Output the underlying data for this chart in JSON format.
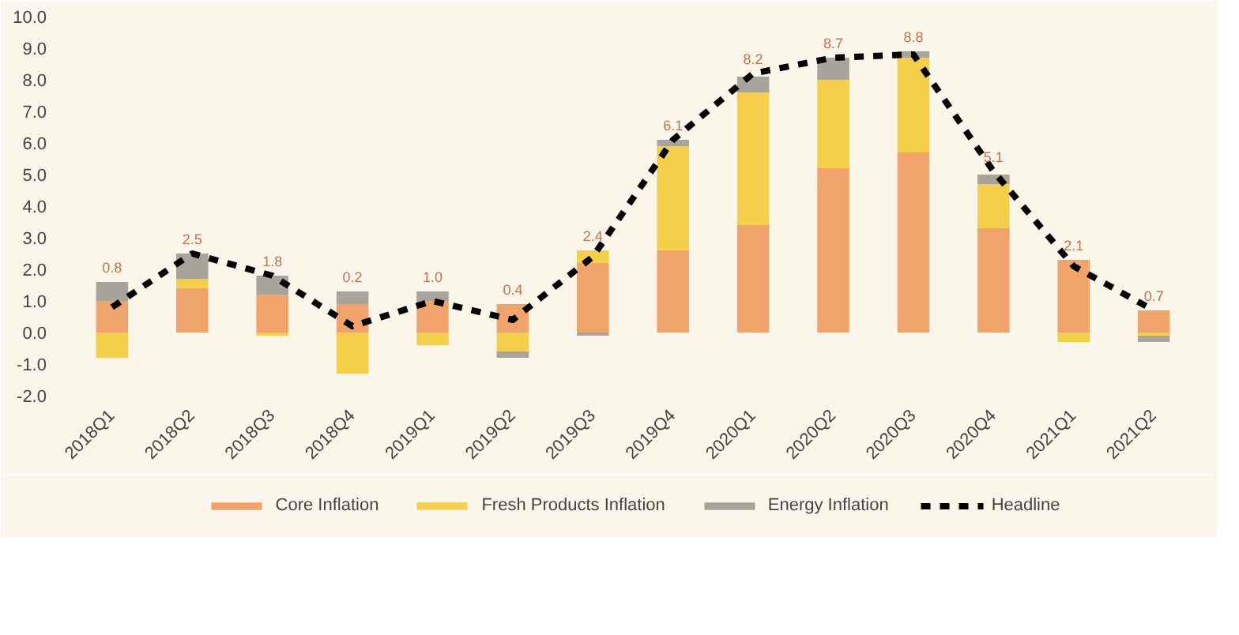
{
  "chart_data": {
    "type": "bar",
    "stacked": true,
    "categories": [
      "2018Q1",
      "2018Q2",
      "2018Q3",
      "2018Q4",
      "2019Q1",
      "2019Q2",
      "2019Q3",
      "2019Q4",
      "2020Q1",
      "2020Q2",
      "2020Q3",
      "2020Q4",
      "2021Q1",
      "2021Q2"
    ],
    "series": [
      {
        "name": "Core Inflation",
        "color": "#f0a46c",
        "values": [
          1.0,
          1.4,
          1.2,
          0.9,
          1.0,
          0.9,
          2.2,
          2.6,
          3.4,
          5.2,
          5.7,
          3.3,
          2.3,
          0.7
        ]
      },
      {
        "name": "Fresh Products Inflation",
        "color": "#f5cf4a",
        "values": [
          -0.8,
          0.3,
          -0.1,
          -1.3,
          -0.4,
          -0.6,
          0.4,
          3.3,
          4.2,
          2.8,
          3.0,
          1.4,
          -0.3,
          -0.1
        ]
      },
      {
        "name": "Energy Inflation",
        "color": "#a8a49c",
        "values": [
          0.6,
          0.8,
          0.6,
          0.4,
          0.3,
          -0.2,
          -0.1,
          0.2,
          0.5,
          0.7,
          0.2,
          0.3,
          0.0,
          -0.2
        ]
      },
      {
        "name": "Headline",
        "type": "line",
        "color": "#000000",
        "line_style": "dashed",
        "values": [
          0.8,
          2.5,
          1.8,
          0.2,
          1.0,
          0.4,
          2.4,
          6.1,
          8.2,
          8.7,
          8.8,
          5.1,
          2.1,
          0.7
        ],
        "value_labels": [
          "0.8",
          "2.5",
          "1.8",
          "0.2",
          "1.0",
          "0.4",
          "2.4",
          "6.1",
          "8.2",
          "8.7",
          "8.8",
          "5.1",
          "2.1",
          "0.7"
        ]
      }
    ],
    "ylim": [
      -2.0,
      10.0
    ],
    "yticks": [
      {
        "value": -2,
        "label": "-2.0"
      },
      {
        "value": -1,
        "label": "-1.0"
      },
      {
        "value": 0,
        "label": "0.0"
      },
      {
        "value": 1,
        "label": "1.0"
      },
      {
        "value": 2,
        "label": "2.0"
      },
      {
        "value": 3,
        "label": "3.0"
      },
      {
        "value": 4,
        "label": "4.0"
      },
      {
        "value": 5,
        "label": "5.0"
      },
      {
        "value": 6,
        "label": "6.0"
      },
      {
        "value": 7,
        "label": "7.0"
      },
      {
        "value": 8,
        "label": "8.0"
      },
      {
        "value": 9,
        "label": "9.0"
      },
      {
        "value": 10,
        "label": "10.0"
      }
    ],
    "grid": false,
    "legend": "bottom"
  }
}
